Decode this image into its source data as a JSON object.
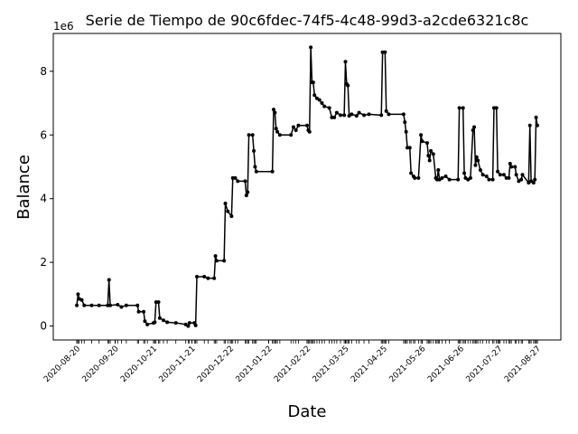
{
  "chart_data": {
    "type": "line",
    "title": "Serie de Tiempo de 90c6fdec-74f5-4c48-99d3-a2cde6321c8c",
    "x_label": "Date",
    "y_label": "Balance",
    "y_offset_label": "1e6",
    "color": "#000000",
    "x": [
      "2020-08-20",
      "2020-08-21",
      "2020-08-22",
      "2020-08-24",
      "2020-08-26",
      "2020-09-01",
      "2020-09-07",
      "2020-09-14",
      "2020-09-15",
      "2020-09-16",
      "2020-09-22",
      "2020-09-25",
      "2020-09-29",
      "2020-10-08",
      "2020-10-09",
      "2020-10-13",
      "2020-10-14",
      "2020-10-16",
      "2020-10-21",
      "2020-10-22",
      "2020-10-23",
      "2020-10-25",
      "2020-10-26",
      "2020-10-29",
      "2020-11-01",
      "2020-11-08",
      "2020-11-16",
      "2020-11-18",
      "2020-11-19",
      "2020-11-23",
      "2020-11-24",
      "2020-11-25",
      "2020-12-01",
      "2020-12-04",
      "2020-12-09",
      "2020-12-10",
      "2020-12-11",
      "2020-12-17",
      "2020-12-18",
      "2020-12-20",
      "2020-12-23",
      "2020-12-24",
      "2020-12-26",
      "2020-12-28",
      "2021-01-03",
      "2021-01-04",
      "2021-01-05",
      "2021-01-06",
      "2021-01-09",
      "2021-01-10",
      "2021-01-11",
      "2021-01-12",
      "2021-01-25",
      "2021-01-26",
      "2021-01-27",
      "2021-01-28",
      "2021-01-29",
      "2021-01-31",
      "2021-02-09",
      "2021-02-11",
      "2021-02-13",
      "2021-02-15",
      "2021-02-22",
      "2021-02-23",
      "2021-02-24",
      "2021-02-25",
      "2021-02-26",
      "2021-02-27",
      "2021-02-28",
      "2021-03-02",
      "2021-03-04",
      "2021-03-06",
      "2021-03-08",
      "2021-03-12",
      "2021-03-14",
      "2021-03-16",
      "2021-03-18",
      "2021-03-21",
      "2021-03-24",
      "2021-03-25",
      "2021-03-26",
      "2021-03-27",
      "2021-03-28",
      "2021-03-30",
      "2021-04-03",
      "2021-04-05",
      "2021-04-09",
      "2021-04-13",
      "2021-04-23",
      "2021-04-24",
      "2021-04-26",
      "2021-04-27",
      "2021-04-29",
      "2021-05-11",
      "2021-05-12",
      "2021-05-13",
      "2021-05-14",
      "2021-05-16",
      "2021-05-17",
      "2021-05-19",
      "2021-05-20",
      "2021-05-23",
      "2021-05-25",
      "2021-05-26",
      "2021-05-30",
      "2021-05-31",
      "2021-06-01",
      "2021-06-02",
      "2021-06-04",
      "2021-06-06",
      "2021-06-07",
      "2021-06-08",
      "2021-06-09",
      "2021-06-11",
      "2021-06-14",
      "2021-06-17",
      "2021-06-24",
      "2021-06-25",
      "2021-06-28",
      "2021-06-29",
      "2021-06-30",
      "2021-07-02",
      "2021-07-04",
      "2021-07-06",
      "2021-07-07",
      "2021-07-08",
      "2021-07-09",
      "2021-07-10",
      "2021-07-12",
      "2021-07-14",
      "2021-07-17",
      "2021-07-19",
      "2021-07-22",
      "2021-07-23",
      "2021-07-25",
      "2021-07-26",
      "2021-07-28",
      "2021-07-31",
      "2021-08-02",
      "2021-08-04",
      "2021-08-05",
      "2021-08-06",
      "2021-08-09",
      "2021-08-10",
      "2021-08-12",
      "2021-08-14",
      "2021-08-15",
      "2021-08-20",
      "2021-08-21",
      "2021-08-22",
      "2021-08-24",
      "2021-08-25",
      "2021-08-26",
      "2021-08-27"
    ],
    "values": [
      650000,
      1000000,
      850000,
      820000,
      650000,
      650000,
      650000,
      650000,
      1450000,
      650000,
      670000,
      600000,
      650000,
      650000,
      450000,
      450000,
      150000,
      50000,
      100000,
      120000,
      750000,
      750000,
      250000,
      180000,
      120000,
      100000,
      50000,
      0,
      100000,
      100000,
      20000,
      1550000,
      1550000,
      1500000,
      1500000,
      2200000,
      2050000,
      2050000,
      3850000,
      3600000,
      3450000,
      4650000,
      4650000,
      4550000,
      4550000,
      4100000,
      4200000,
      6000000,
      6000000,
      5500000,
      5000000,
      4850000,
      4850000,
      6800000,
      6700000,
      6200000,
      6100000,
      6000000,
      6000000,
      6250000,
      6150000,
      6300000,
      6300000,
      6150000,
      6100000,
      8750000,
      7650000,
      7650000,
      7250000,
      7150000,
      7100000,
      7000000,
      6900000,
      6850000,
      6550000,
      6550000,
      6700000,
      6620000,
      6620000,
      8300000,
      7600000,
      7550000,
      6600000,
      6650000,
      6600000,
      6700000,
      6620000,
      6650000,
      6620000,
      8600000,
      8600000,
      6750000,
      6650000,
      6650000,
      6400000,
      6100000,
      5600000,
      5600000,
      4800000,
      4700000,
      4650000,
      4650000,
      6000000,
      5800000,
      5750000,
      5350000,
      5200000,
      5500000,
      5400000,
      4650000,
      4600000,
      4900000,
      4600000,
      4650000,
      4700000,
      4600000,
      4600000,
      6850000,
      6850000,
      4800000,
      4650000,
      4600000,
      4650000,
      6150000,
      6250000,
      5050000,
      5300000,
      5200000,
      4900000,
      4750000,
      4700000,
      4600000,
      4600000,
      6850000,
      6850000,
      4850000,
      4750000,
      4750000,
      4650000,
      4650000,
      5100000,
      5000000,
      5000000,
      4750000,
      4550000,
      4600000,
      4750000,
      4500000,
      6300000,
      4550000,
      4500000,
      4600000,
      6550000,
      6300000
    ],
    "xlim": [
      "2020-08-01",
      "2021-09-15"
    ],
    "xticks": [
      "2020-08-20",
      "2020-09-20",
      "2020-10-21",
      "2020-11-21",
      "2020-12-22",
      "2021-01-22",
      "2021-02-22",
      "2021-03-25",
      "2021-04-25",
      "2021-05-26",
      "2021-06-26",
      "2021-07-27",
      "2021-08-27"
    ],
    "ylim": [
      -437500,
      9187500
    ],
    "yticks": [
      {
        "value": 0,
        "label": "0"
      },
      {
        "value": 2000000,
        "label": "2"
      },
      {
        "value": 4000000,
        "label": "4"
      },
      {
        "value": 6000000,
        "label": "6"
      },
      {
        "value": 8000000,
        "label": "8"
      }
    ],
    "grid": false
  }
}
